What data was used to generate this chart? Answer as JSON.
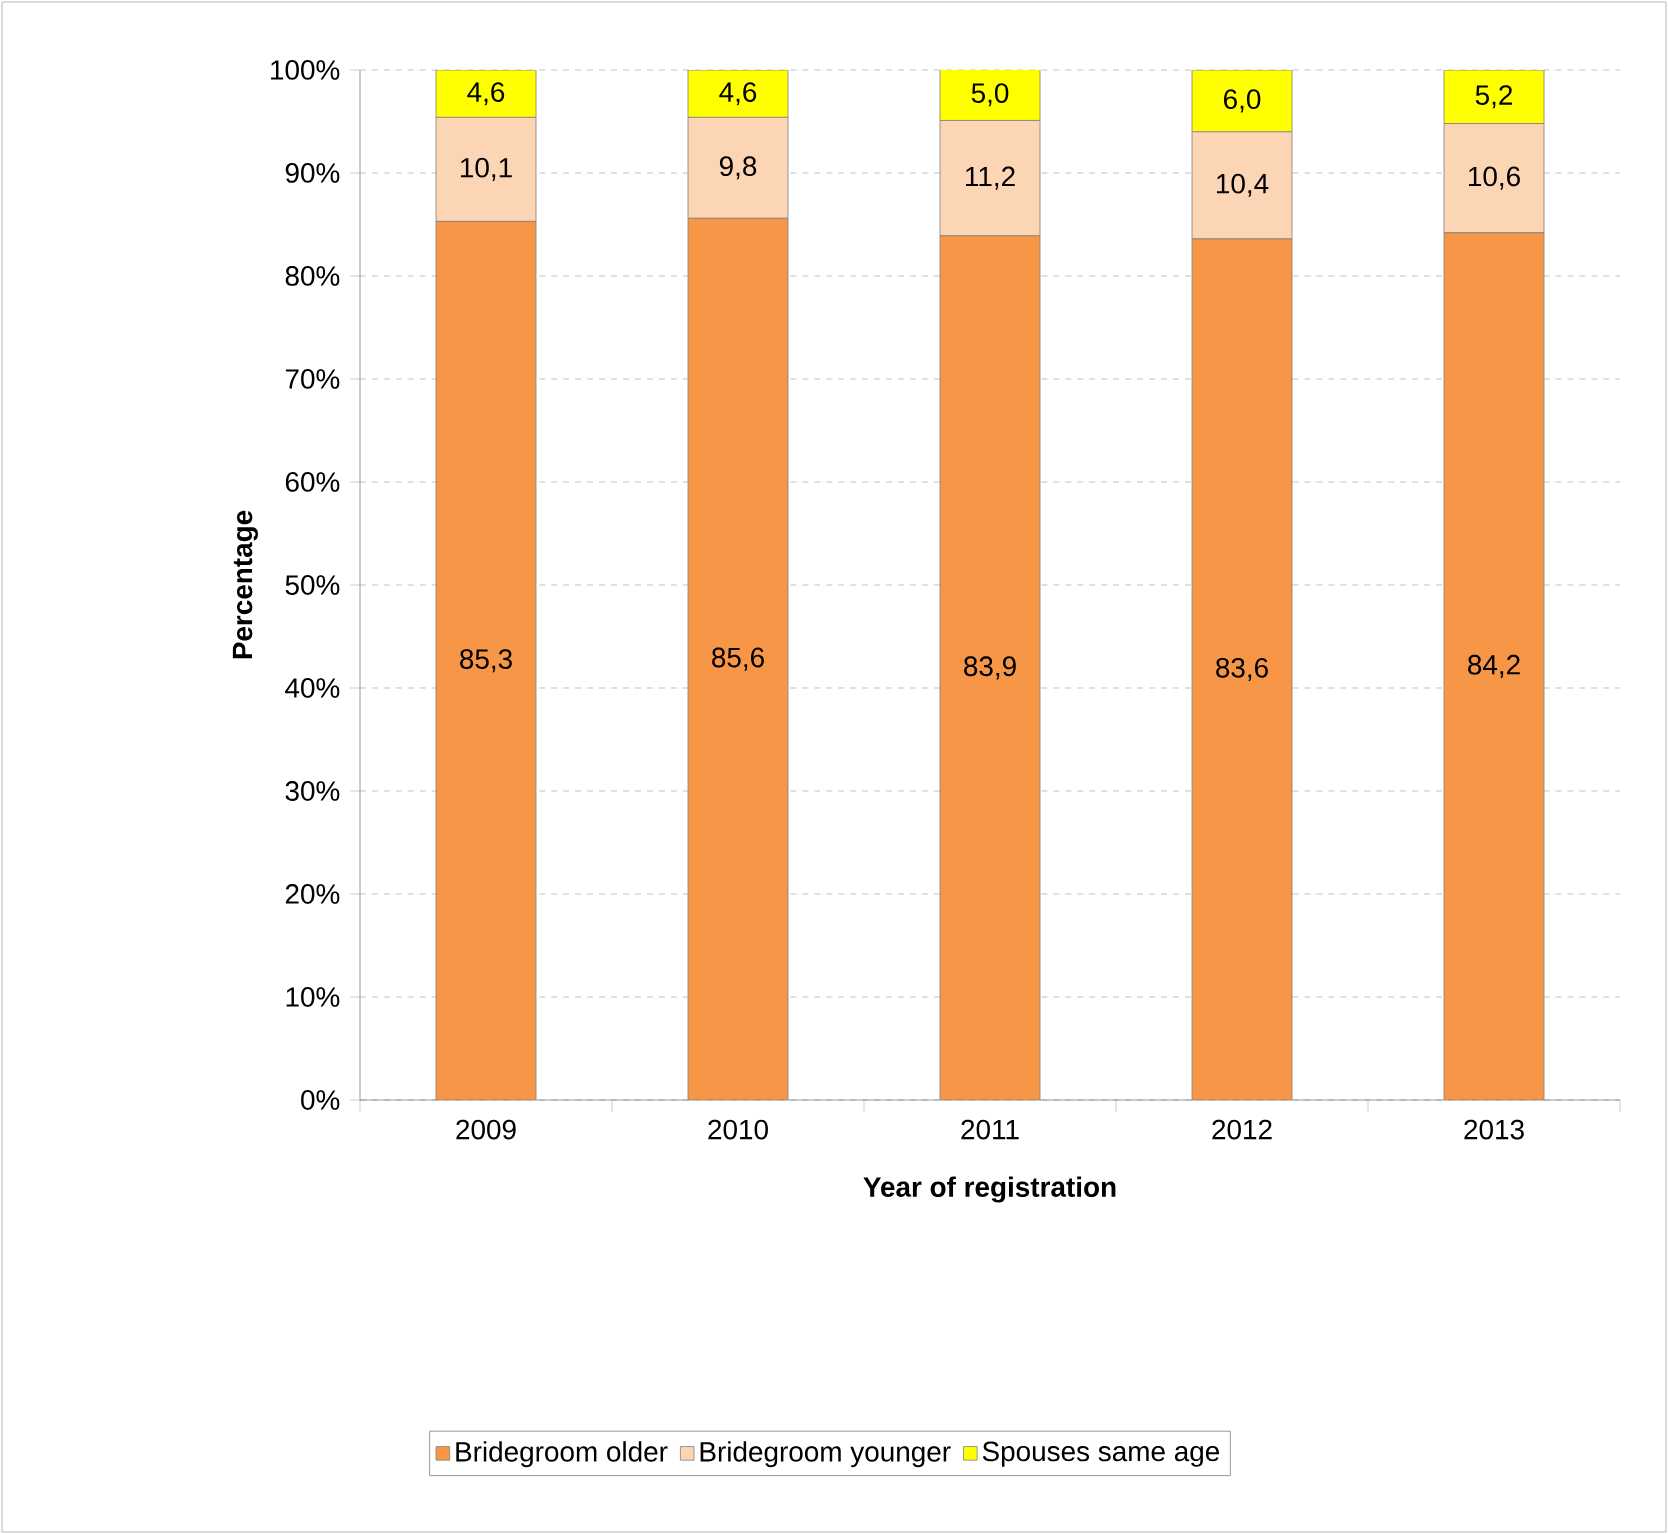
{
  "chart_data": {
    "type": "bar",
    "stacked": true,
    "xlabel": "Year of registration",
    "ylabel": "Percentage",
    "categories": [
      "2009",
      "2010",
      "2011",
      "2012",
      "2013"
    ],
    "series": [
      {
        "name": "Bridegroom older",
        "color": "#f79646",
        "values": [
          85.3,
          85.6,
          83.9,
          83.6,
          84.2
        ],
        "value_labels": [
          "85,3",
          "85,6",
          "83,9",
          "83,6",
          "84,2"
        ]
      },
      {
        "name": "Bridegroom younger",
        "color": "#fcd5b5",
        "values": [
          10.1,
          9.8,
          11.2,
          10.4,
          10.6
        ],
        "value_labels": [
          "10,1",
          "9,8",
          "11,2",
          "10,4",
          "10,6"
        ]
      },
      {
        "name": "Spouses same age",
        "color": "#ffff00",
        "values": [
          4.6,
          4.6,
          5.0,
          6.0,
          5.2
        ],
        "value_labels": [
          "4,6",
          "4,6",
          "5,0",
          "6,0",
          "5,2"
        ]
      }
    ],
    "ylim": [
      0,
      100
    ],
    "yticks": [
      {
        "value": 0,
        "label": "0%"
      },
      {
        "value": 10,
        "label": "10%"
      },
      {
        "value": 20,
        "label": "20%"
      },
      {
        "value": 30,
        "label": "30%"
      },
      {
        "value": 40,
        "label": "40%"
      },
      {
        "value": 50,
        "label": "50%"
      },
      {
        "value": 60,
        "label": "60%"
      },
      {
        "value": 70,
        "label": "70%"
      },
      {
        "value": 80,
        "label": "80%"
      },
      {
        "value": 90,
        "label": "90%"
      },
      {
        "value": 100,
        "label": "100%"
      }
    ],
    "grid": "y",
    "legend": "bottom"
  }
}
